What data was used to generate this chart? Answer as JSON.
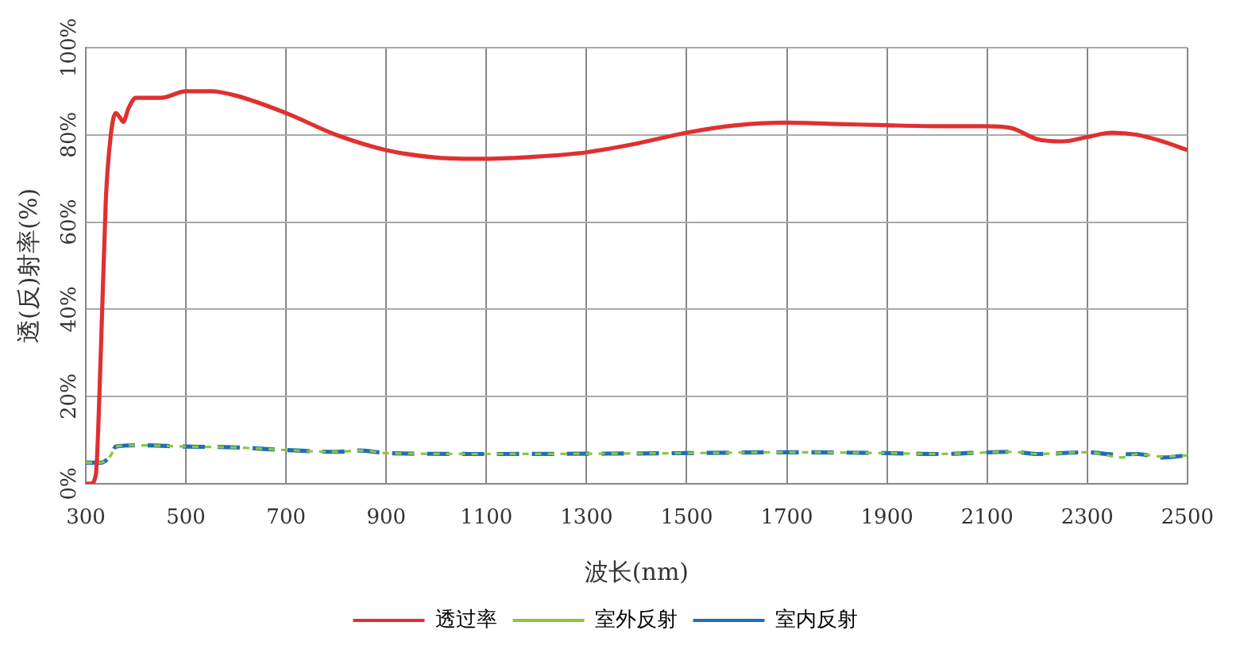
{
  "chart_data": {
    "type": "line",
    "xlabel": "波长(nm)",
    "ylabel": "透(反)射率(%)",
    "xlim": [
      300,
      2500
    ],
    "xticks": [
      300,
      500,
      700,
      900,
      1100,
      1300,
      1500,
      1700,
      1900,
      2100,
      2300,
      2500
    ],
    "ylim": [
      0,
      100
    ],
    "yticks": [
      {
        "value": 0,
        "label": "0%"
      },
      {
        "value": 20,
        "label": "20%"
      },
      {
        "value": 40,
        "label": "40%"
      },
      {
        "value": 60,
        "label": "60%"
      },
      {
        "value": 80,
        "label": "80%"
      },
      {
        "value": 100,
        "label": "100%"
      }
    ],
    "grid": true,
    "legend": "bottom",
    "marker": "none",
    "series": [
      {
        "name": "透过率",
        "color": "#e03030",
        "line_style": "solid",
        "x": [
          300,
          310,
          320,
          330,
          340,
          350,
          360,
          368,
          375,
          385,
          400,
          450,
          500,
          550,
          600,
          700,
          800,
          900,
          1000,
          1100,
          1200,
          1300,
          1400,
          1500,
          1600,
          1700,
          1800,
          1900,
          2000,
          2100,
          2150,
          2200,
          2250,
          2300,
          2350,
          2400,
          2450,
          2500
        ],
        "values": [
          0,
          0,
          2,
          30,
          65,
          80,
          85,
          84,
          83,
          86,
          88.5,
          88.5,
          90,
          90,
          89,
          85,
          80,
          76.5,
          74.8,
          74.5,
          75,
          76,
          78,
          80.5,
          82.2,
          82.8,
          82.5,
          82.2,
          82,
          82,
          81.5,
          79,
          78.5,
          79.5,
          80.5,
          80,
          78.5,
          76.5
        ]
      },
      {
        "name": "室外反射",
        "color": "#8cc63f",
        "line_style": "dashed",
        "x": [
          300,
          330,
          350,
          360,
          400,
          500,
          600,
          700,
          800,
          850,
          900,
          1100,
          1500,
          1700,
          1900,
          2000,
          2150,
          2200,
          2300,
          2370,
          2400,
          2450,
          2500
        ],
        "values": [
          4.8,
          4.8,
          6.5,
          8.5,
          8.8,
          8.5,
          8.3,
          7.7,
          7.3,
          7.6,
          7,
          6.8,
          7,
          7.2,
          7,
          6.8,
          7.3,
          6.8,
          7.2,
          6,
          6.8,
          6.2,
          6.5
        ]
      },
      {
        "name": "室内反射",
        "color": "#1f6eb8",
        "line_style": "dashed",
        "x": [
          300,
          330,
          350,
          360,
          400,
          500,
          600,
          700,
          800,
          850,
          900,
          1100,
          1500,
          1700,
          1900,
          2000,
          2150,
          2200,
          2300,
          2350,
          2400,
          2450,
          2500
        ],
        "values": [
          4.8,
          4.8,
          6.5,
          8.5,
          8.8,
          8.5,
          8.3,
          7.7,
          7.3,
          7.6,
          7,
          6.8,
          7,
          7.2,
          7,
          6.8,
          7.3,
          6.8,
          7.2,
          6.7,
          6.8,
          6,
          6.5
        ]
      }
    ]
  }
}
